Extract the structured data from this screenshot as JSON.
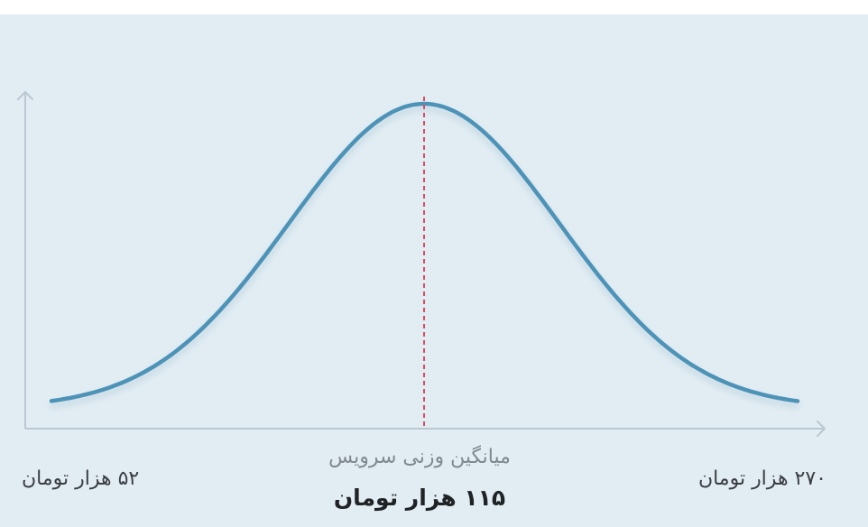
{
  "colors": {
    "background": "#e2edf3",
    "curve": "#4e93b8",
    "axis": "#b9c8d2",
    "mean_line": "#e04862"
  },
  "chart_data": {
    "type": "line",
    "x_range": [
      52,
      270
    ],
    "ylim": [
      0,
      1
    ],
    "grid": false,
    "series": [
      {
        "x": [
          52,
          76,
          95,
          103,
          115,
          127,
          135,
          154,
          178,
          205,
          232,
          270
        ],
        "values": [
          0.01,
          0.12,
          0.51,
          0.78,
          1.0,
          0.78,
          0.51,
          0.12,
          0.01,
          0.0,
          0.0,
          0.0
        ]
      }
    ],
    "mean": {
      "x": 115,
      "caption": "میانگین وزنی سرویس",
      "value_label": "۱۱۵ هزار تومان"
    },
    "min_label": "۵۲ هزار تومان",
    "max_label": "۲۷۰ هزار تومان"
  }
}
